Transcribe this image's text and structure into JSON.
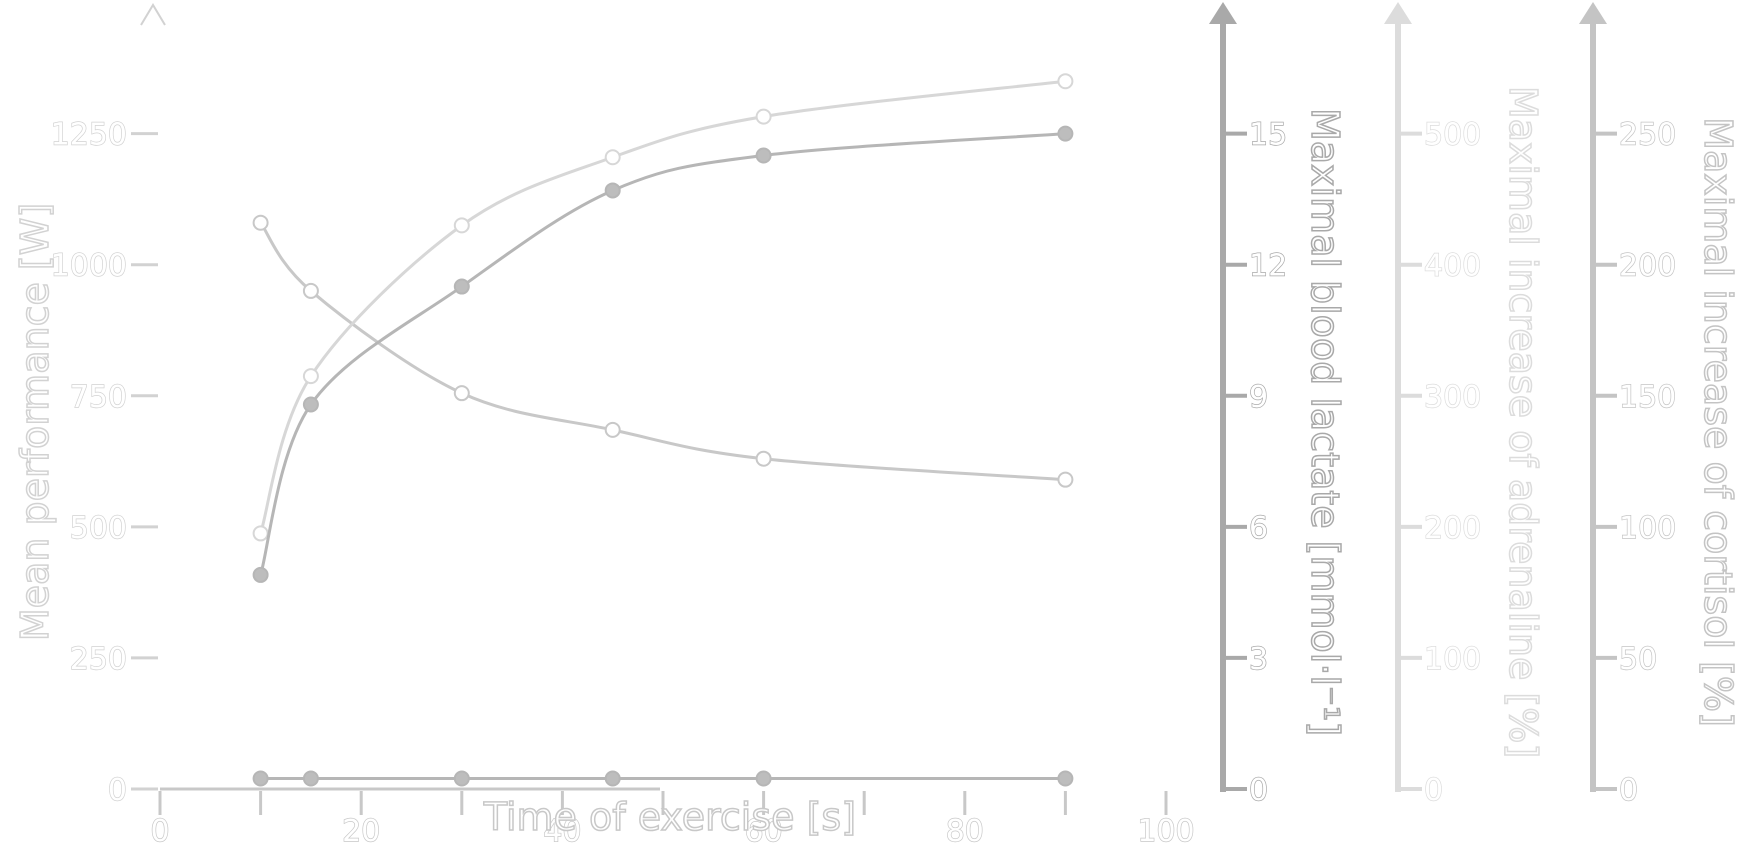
{
  "chart_data": {
    "type": "line",
    "title": "",
    "xlabel": "Time of exercise [s]",
    "xlim": [
      0,
      100
    ],
    "x_ticks": [
      0,
      10,
      20,
      30,
      40,
      50,
      60,
      70,
      80,
      90,
      100
    ],
    "x_tick_labels": [
      "0",
      "20",
      "40",
      "60",
      "80",
      "100"
    ],
    "axes": [
      {
        "id": "performance",
        "label": "Mean performance [W]",
        "position": "left",
        "range": [
          0,
          1400
        ],
        "ticks": [
          0,
          250,
          500,
          750,
          1000,
          1250
        ],
        "color": "#d2d2d2"
      },
      {
        "id": "lactate",
        "label": "Maximal blood lactate [mmol·l⁻¹]",
        "position": "right",
        "range": [
          0,
          16.8
        ],
        "ticks": [
          0,
          3,
          6,
          9,
          12,
          15
        ],
        "color": "#a9a9a9"
      },
      {
        "id": "adrenaline",
        "label": "Maximal increase of adrenaline [%]",
        "position": "right",
        "range": [
          0,
          560
        ],
        "ticks": [
          0,
          100,
          200,
          300,
          400,
          500
        ],
        "color": "#dcdcdc"
      },
      {
        "id": "cortisol",
        "label": "Maximal increase of cortisol [%]",
        "position": "right",
        "range": [
          0,
          280
        ],
        "ticks": [
          0,
          50,
          100,
          150,
          200,
          250
        ],
        "color": "#c4c4c4"
      }
    ],
    "series": [
      {
        "axis": "performance",
        "color": "#c8c8c8",
        "fill": "#ffffff",
        "x": [
          10,
          15,
          30,
          45,
          60,
          90
        ],
        "y": [
          1080,
          950,
          755,
          685,
          630,
          590
        ]
      },
      {
        "axis": "adrenaline",
        "color": "#d7d7d7",
        "fill": "#ffffff",
        "x": [
          10,
          15,
          30,
          45,
          60,
          90
        ],
        "y": [
          195,
          315,
          430,
          482,
          513,
          540
        ]
      },
      {
        "axis": "lactate",
        "color": "#b6b6b6",
        "fill": "#bdbdbd",
        "x": [
          10,
          15,
          30,
          45,
          60,
          90
        ],
        "y": [
          4.9,
          8.8,
          11.5,
          13.7,
          14.5,
          15.0
        ]
      },
      {
        "axis": "cortisol",
        "color": "#b6b6b6",
        "fill": "#bdbdbd",
        "x": [
          10,
          15,
          30,
          45,
          60,
          90
        ],
        "y": [
          4,
          4,
          4,
          4,
          4,
          4
        ]
      }
    ],
    "legend": "none",
    "grid": false
  }
}
